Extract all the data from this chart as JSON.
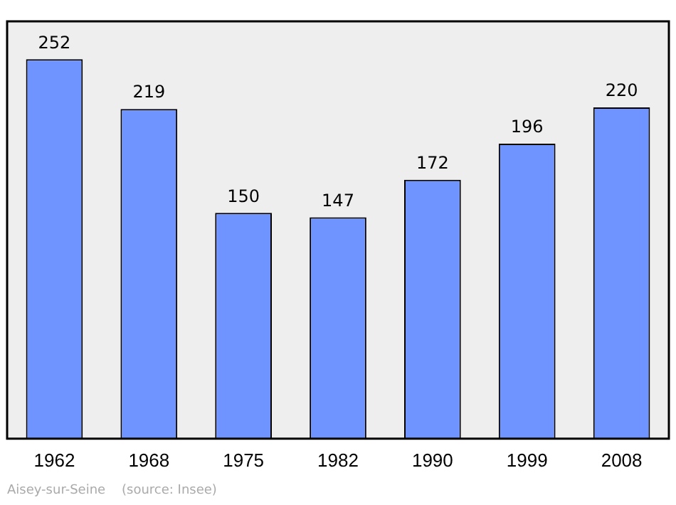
{
  "chart_data": {
    "type": "bar",
    "categories": [
      "1962",
      "1968",
      "1975",
      "1982",
      "1990",
      "1999",
      "2008"
    ],
    "values": [
      252,
      219,
      150,
      147,
      172,
      196,
      220
    ],
    "color": "#6f94ff",
    "data_labels": true,
    "grid": false,
    "legend": false,
    "annotations": [
      "Aisey-sur-Seine    (source: Insee)"
    ]
  }
}
